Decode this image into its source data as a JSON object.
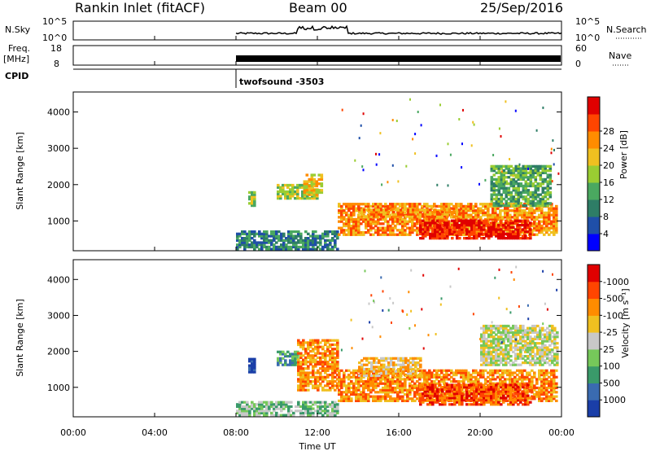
{
  "header": {
    "station": "Rankin Inlet (fitACF)",
    "beam": "Beam 00",
    "date": "25/Sep/2016"
  },
  "top_panels": {
    "nsky_label": "N.Sky",
    "nsky_ticks": [
      "10^5",
      "10^0"
    ],
    "nsearch_label": "N.Search",
    "nsearch_ticks": [
      "10^5",
      "10^0"
    ],
    "freq_label": "Freq.",
    "freq_unit": "[MHz]",
    "freq_ticks": [
      "18",
      "8"
    ],
    "nave_label": "Nave",
    "nave_ticks": [
      "60",
      "0"
    ],
    "cpid_label": "CPID",
    "cpid_text": "twofsound -3503",
    "cpid_start_hour": 8
  },
  "chart_data": [
    {
      "type": "heatmap",
      "name": "power",
      "ylabel": "Slant Range [km]",
      "yticks": [
        1000,
        2000,
        3000,
        4000
      ],
      "ylim": [
        180,
        4550
      ],
      "xlim": [
        0,
        24
      ],
      "colorbar_label": "Power [dB]",
      "colorbar_ticks": [
        "4",
        "8",
        "12",
        "16",
        "20",
        "24",
        "28"
      ],
      "colorbar_colors": [
        "#0000ff",
        "#1f4fa8",
        "#2e7d66",
        "#4aa860",
        "#9acd32",
        "#f0c020",
        "#ff8c00",
        "#ff4500",
        "#e00000"
      ],
      "regions": [
        {
          "t0": 8.0,
          "t1": 13.0,
          "r0": 200,
          "r1": 700,
          "level": 2
        },
        {
          "t0": 8.6,
          "t1": 8.9,
          "r0": 1400,
          "r1": 1800,
          "level": 4
        },
        {
          "t0": 10.0,
          "t1": 12.0,
          "r0": 1600,
          "r1": 2000,
          "level": 4
        },
        {
          "t0": 11.3,
          "t1": 12.2,
          "r0": 1700,
          "r1": 2300,
          "level": 5
        },
        {
          "t0": 13.0,
          "t1": 23.8,
          "r0": 600,
          "r1": 1500,
          "level": 6
        },
        {
          "t0": 17.0,
          "t1": 22.5,
          "r0": 500,
          "r1": 1000,
          "level": 8
        },
        {
          "t0": 20.5,
          "t1": 23.5,
          "r0": 1400,
          "r1": 2500,
          "level": 3
        },
        {
          "t0": 14.0,
          "t1": 19.0,
          "r0": 1100,
          "r1": 1300,
          "level": 6
        }
      ]
    },
    {
      "type": "heatmap",
      "name": "velocity",
      "ylabel": "Slant Range [km]",
      "yticks": [
        1000,
        2000,
        3000,
        4000
      ],
      "ylim": [
        180,
        4550
      ],
      "xlim": [
        0,
        24
      ],
      "xticks": [
        "00:00",
        "04:00",
        "08:00",
        "12:00",
        "16:00",
        "20:00",
        "00:00"
      ],
      "xlabel": "Time UT",
      "colorbar_label": "Velocity [m s⁻¹]",
      "colorbar_ticks": [
        "1000",
        "500",
        "100",
        "25",
        "-25",
        "-100",
        "-500",
        "-1000"
      ],
      "colorbar_colors": [
        "#1a3ea8",
        "#3a6bb0",
        "#3a9a6a",
        "#76c85a",
        "#c8c8c8",
        "#f0c020",
        "#ff8c00",
        "#ff4500",
        "#e00000"
      ],
      "regions": [
        {
          "t0": 8.0,
          "t1": 13.0,
          "r0": 200,
          "r1": 600,
          "level": 3
        },
        {
          "t0": 8.6,
          "t1": 8.9,
          "r0": 1400,
          "r1": 1800,
          "level": 0
        },
        {
          "t0": 10.0,
          "t1": 11.0,
          "r0": 1600,
          "r1": 2000,
          "level": 2
        },
        {
          "t0": 11.0,
          "t1": 13.0,
          "r0": 900,
          "r1": 2300,
          "level": 6
        },
        {
          "t0": 13.0,
          "t1": 23.8,
          "r0": 600,
          "r1": 1500,
          "level": 6
        },
        {
          "t0": 17.0,
          "t1": 22.5,
          "r0": 500,
          "r1": 1100,
          "level": 7
        },
        {
          "t0": 20.0,
          "t1": 23.8,
          "r0": 1600,
          "r1": 2700,
          "level": 4
        },
        {
          "t0": 14.0,
          "t1": 17.0,
          "r0": 1300,
          "r1": 1800,
          "level": 5
        }
      ]
    }
  ]
}
